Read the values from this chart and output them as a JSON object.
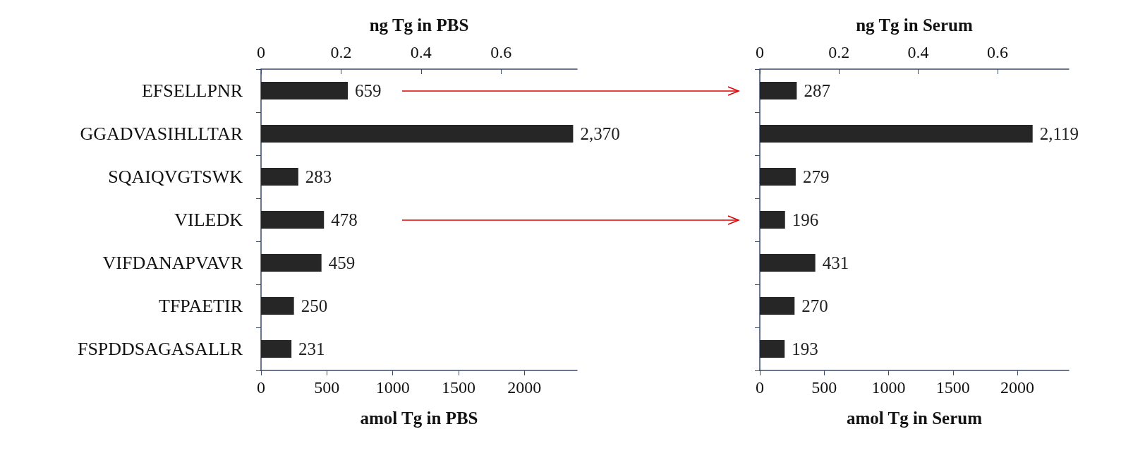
{
  "chart_data": [
    {
      "type": "bar",
      "orientation": "horizontal",
      "categories": [
        "EFSELLPNR",
        "GGADVASIHLLTAR",
        "SQAIQVGTSWK",
        "VILEDK",
        "VIFDANAPVAVR",
        "TFPAETIR",
        "FSPDDSAGASALLR"
      ],
      "values": [
        659,
        2370,
        283,
        478,
        459,
        250,
        231
      ],
      "value_labels": [
        "659",
        "2,370",
        "283",
        "478",
        "459",
        "250",
        "231"
      ],
      "color": "#262626",
      "xlabel": "amol Tg in PBS",
      "x2label": "ng Tg in PBS",
      "xlim": [
        0,
        2400
      ],
      "xticks": [
        0,
        500,
        1000,
        1500,
        2000
      ],
      "x2lim": [
        0,
        0.79
      ],
      "x2ticks": [
        0,
        0.2,
        0.4,
        0.6
      ],
      "grid": false
    },
    {
      "type": "bar",
      "orientation": "horizontal",
      "categories": [
        null,
        null,
        null,
        null,
        null,
        null,
        null
      ],
      "values": [
        287,
        2119,
        279,
        196,
        431,
        270,
        193
      ],
      "value_labels": [
        "287",
        "2,119",
        "279",
        "196",
        "431",
        "270",
        "193"
      ],
      "color": "#262626",
      "xlabel": "amol Tg in Serum",
      "x2label": "ng Tg in Serum",
      "xlim": [
        0,
        2400
      ],
      "xticks": [
        0,
        500,
        1000,
        1500,
        2000
      ],
      "x2lim": [
        0,
        0.78
      ],
      "x2ticks": [
        0,
        0.2,
        0.4,
        0.6
      ],
      "tick_labels": "x",
      "grid": false
    }
  ]
}
